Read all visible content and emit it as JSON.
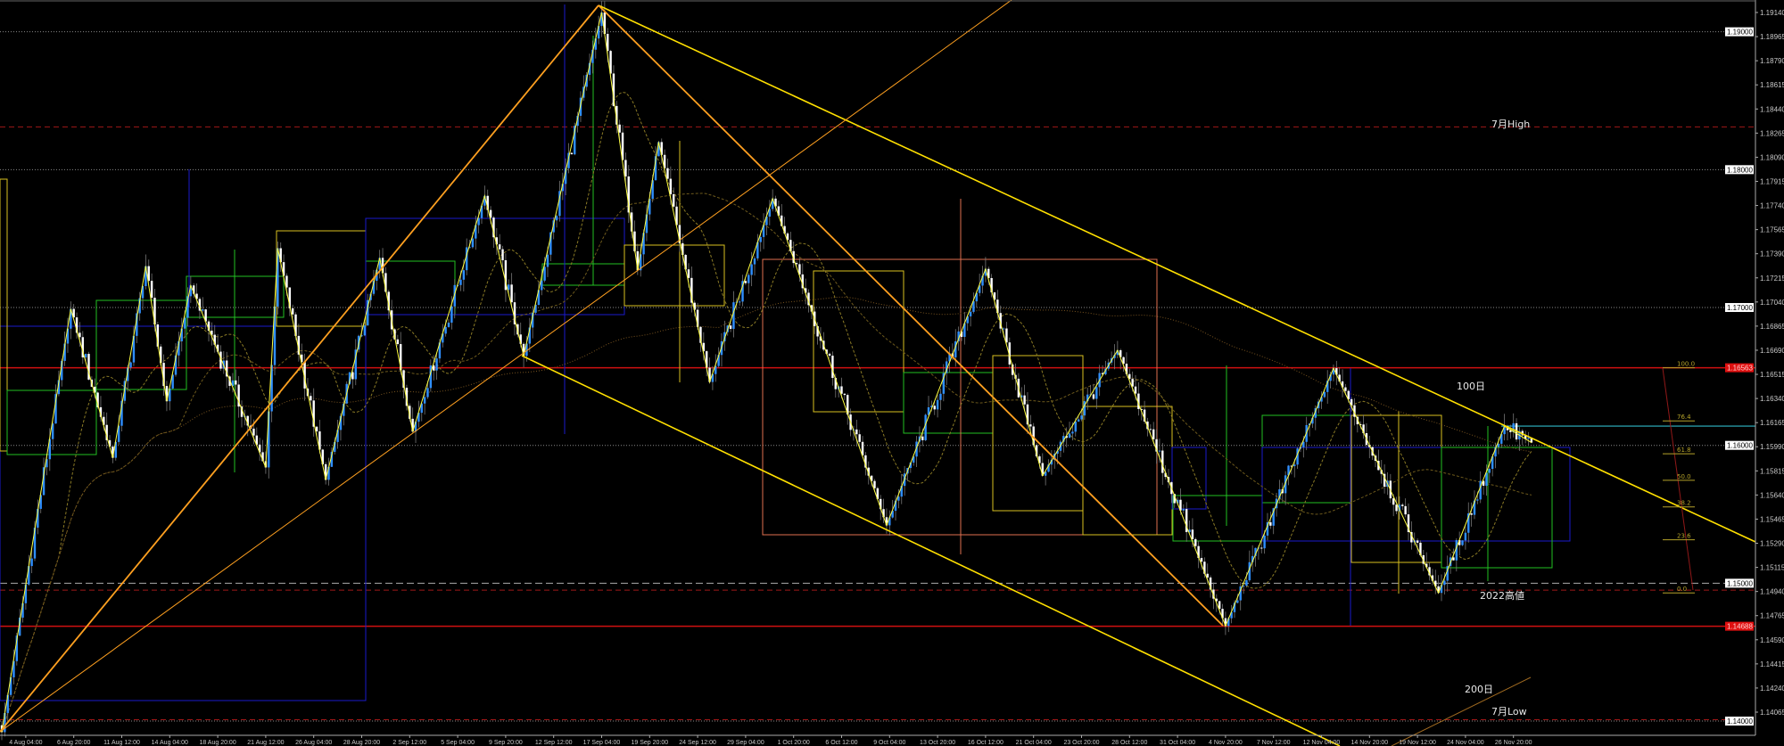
{
  "chart_data": {
    "type": "candlestick",
    "y_axis": {
      "range": [
        1.1382,
        1.1923
      ],
      "tick_labels": [
        "1.19140",
        "1.18965",
        "1.18790",
        "1.18615",
        "1.18440",
        "1.18265",
        "1.18090",
        "1.17915",
        "1.17740",
        "1.17565",
        "1.17390",
        "1.17215",
        "1.17040",
        "1.16865",
        "1.16690",
        "1.16515",
        "1.16340",
        "1.16165",
        "1.15990",
        "1.15815",
        "1.15640",
        "1.15465",
        "1.15290",
        "1.15115",
        "1.14940",
        "1.14765",
        "1.14590",
        "1.14415",
        "1.14240",
        "1.14065"
      ],
      "boxed_levels": [
        {
          "label": "1.19000",
          "value": 1.19,
          "kind": "round"
        },
        {
          "label": "1.18000",
          "value": 1.18,
          "kind": "round"
        },
        {
          "label": "1.17000",
          "value": 1.17,
          "kind": "round"
        },
        {
          "label": "1.16000",
          "value": 1.16,
          "kind": "round"
        },
        {
          "label": "1.15000",
          "value": 1.15,
          "kind": "round-dashed"
        },
        {
          "label": "1.14000",
          "value": 1.14,
          "kind": "round"
        },
        {
          "label": "1.16563",
          "value": 1.16563,
          "kind": "red"
        },
        {
          "label": "1.14688",
          "value": 1.14688,
          "kind": "red"
        }
      ]
    },
    "x_axis": {
      "tick_labels": [
        "4 Aug 04:00",
        "6 Aug 20:00",
        "11 Aug 12:00",
        "14 Aug 04:00",
        "18 Aug 20:00",
        "21 Aug 12:00",
        "26 Aug 04:00",
        "28 Aug 20:00",
        "2 Sep 12:00",
        "5 Sep 04:00",
        "9 Sep 20:00",
        "12 Sep 12:00",
        "17 Sep 04:00",
        "19 Sep 20:00",
        "24 Sep 12:00",
        "29 Sep 04:00",
        "1 Oct 20:00",
        "6 Oct 12:00",
        "9 Oct 04:00",
        "13 Oct 20:00",
        "16 Oct 12:00",
        "21 Oct 04:00",
        "23 Oct 20:00",
        "28 Oct 12:00",
        "31 Oct 04:00",
        "4 Nov 20:00",
        "7 Nov 12:00",
        "12 Nov 04:00",
        "14 Nov 20:00",
        "19 Nov 12:00",
        "24 Nov 04:00",
        "26 Nov 20:00"
      ],
      "bars_between_ticks": 16
    },
    "price_pivots": [
      {
        "bar": 0,
        "price": 1.1392
      },
      {
        "bar": 23,
        "price": 1.1699
      },
      {
        "bar": 37,
        "price": 1.1591
      },
      {
        "bar": 48,
        "price": 1.173
      },
      {
        "bar": 55,
        "price": 1.1632
      },
      {
        "bar": 63,
        "price": 1.1716
      },
      {
        "bar": 88,
        "price": 1.1584
      },
      {
        "bar": 92,
        "price": 1.1743
      },
      {
        "bar": 108,
        "price": 1.1575
      },
      {
        "bar": 126,
        "price": 1.1736
      },
      {
        "bar": 137,
        "price": 1.161
      },
      {
        "bar": 161,
        "price": 1.1781
      },
      {
        "bar": 174,
        "price": 1.1665
      },
      {
        "bar": 200,
        "price": 1.1914
      },
      {
        "bar": 212,
        "price": 1.1727
      },
      {
        "bar": 219,
        "price": 1.182
      },
      {
        "bar": 236,
        "price": 1.1646
      },
      {
        "bar": 257,
        "price": 1.1779
      },
      {
        "bar": 295,
        "price": 1.1542
      },
      {
        "bar": 328,
        "price": 1.1728
      },
      {
        "bar": 347,
        "price": 1.1578
      },
      {
        "bar": 372,
        "price": 1.1669
      },
      {
        "bar": 408,
        "price": 1.1469
      },
      {
        "bar": 444,
        "price": 1.1656
      },
      {
        "bar": 479,
        "price": 1.1493
      },
      {
        "bar": 501,
        "price": 1.1614
      },
      {
        "bar": 510,
        "price": 1.1602
      }
    ],
    "horizontal_lines": [
      {
        "label": "7月High",
        "value": 1.1831,
        "style": "red-dashed"
      },
      {
        "label": "2022高値",
        "value": 1.1495,
        "style": "red-dashed"
      },
      {
        "label": "7月Low",
        "value": 1.1401,
        "style": "red-dashed"
      },
      {
        "label": "",
        "value": 1.16563,
        "style": "red-solid"
      },
      {
        "label": "",
        "value": 1.14688,
        "style": "red-solid"
      },
      {
        "label": "",
        "value": 1.1614,
        "style": "cyan-solid"
      }
    ],
    "annotations": [
      {
        "text": "100日"
      },
      {
        "text": "200日"
      }
    ],
    "fibonacci": {
      "levels": [
        "100.0",
        "76.4",
        "61.8",
        "50.0",
        "38.2",
        "23.6",
        "0.0"
      ],
      "high": 1.16563,
      "low": 1.1493
    },
    "grid": false,
    "colors": {
      "background": "#000000",
      "bull": "#2f8fff",
      "bear": "#ffffff",
      "zigzag": "#ffff40",
      "channel": "#ffe000",
      "trend": "#ffa020",
      "levels_red": "#d01010",
      "fib": "#b5a22a",
      "cyan": "#30b8c8"
    }
  }
}
